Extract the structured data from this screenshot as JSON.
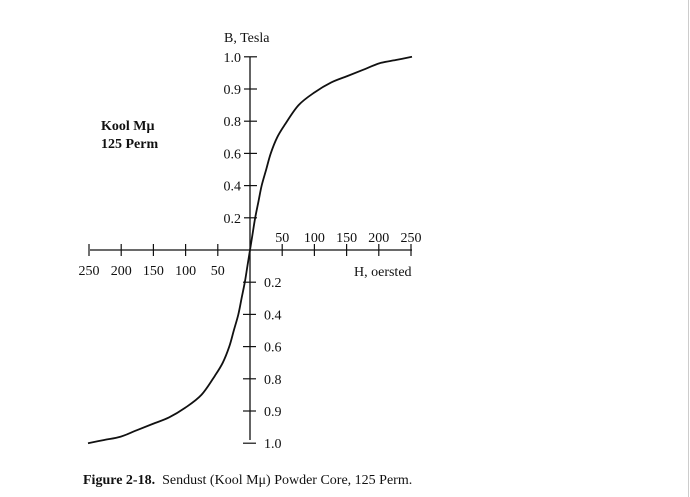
{
  "chart_data": {
    "type": "line",
    "title": "",
    "ylabel": "B,  Tesla",
    "xlabel": "H, oersted",
    "x_ticks_positive": [
      "50",
      "100",
      "150",
      "200",
      "250"
    ],
    "x_ticks_negative": [
      "250",
      "200",
      "150",
      "100",
      "50"
    ],
    "y_ticks_positive": [
      "1.0",
      "0.9",
      "0.8",
      "0.6",
      "0.4",
      "0.2"
    ],
    "y_ticks_negative": [
      "0.2",
      "0.4",
      "0.6",
      "0.8",
      "0.9",
      "1.0"
    ],
    "y_tick_values": [
      0,
      0.2,
      0.4,
      0.6,
      0.8,
      0.9,
      1.0
    ],
    "xlim": [
      -250,
      250
    ],
    "ylim": [
      -1.0,
      1.0
    ],
    "grid": false,
    "series": [
      {
        "name": "Kool Mu 125 Perm",
        "symmetric_odd": true,
        "H": [
          0,
          4,
          8,
          13,
          18,
          25,
          32,
          42,
          54,
          75,
          100,
          125,
          150,
          175,
          200,
          225,
          250
        ],
        "B": [
          0,
          0.1,
          0.2,
          0.3,
          0.4,
          0.5,
          0.6,
          0.7,
          0.78,
          0.85,
          0.89,
          0.92,
          0.94,
          0.96,
          0.98,
          0.99,
          1.0
        ]
      }
    ]
  },
  "annotation": {
    "line1": "Kool  Mμ",
    "line2": "125 Perm"
  },
  "caption": {
    "label": "Figure 2-18.",
    "text": "  Sendust (Kool Mμ) Powder Core, 125 Perm."
  }
}
